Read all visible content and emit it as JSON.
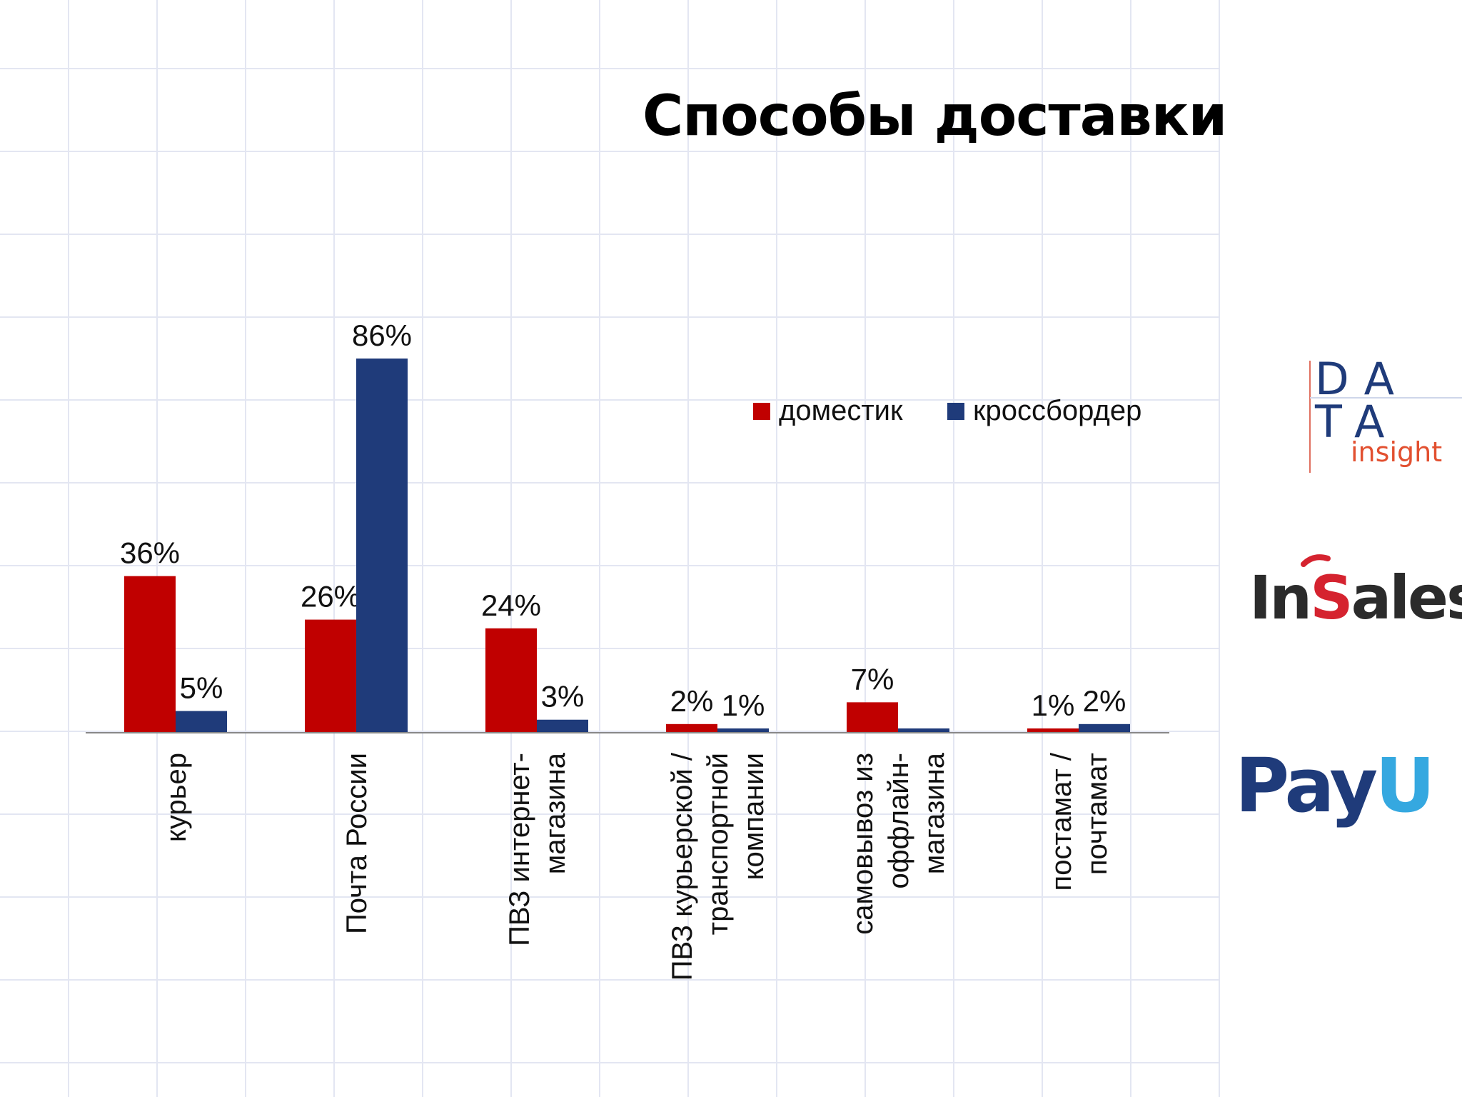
{
  "title": "Способы доставки",
  "colors": {
    "domestic": "#c00000",
    "crossborder": "#1f3b7a",
    "grid": "#e3e6f2"
  },
  "chart_data": {
    "type": "bar",
    "title": "Способы доставки",
    "categories": [
      [
        "курьер"
      ],
      [
        "Почта России"
      ],
      [
        "ПВЗ интернет-",
        "магазина"
      ],
      [
        "ПВЗ курьерской /",
        "транспортной",
        "компании"
      ],
      [
        "самовывоз из",
        "оффлайн-",
        "магазина"
      ],
      [
        "постамат /",
        "почтамат"
      ]
    ],
    "series": [
      {
        "name": "доместик",
        "values": [
          36,
          26,
          24,
          2,
          7,
          1
        ],
        "labels": [
          "36%",
          "26%",
          "24%",
          "2%",
          "7%",
          "1%"
        ],
        "color": "#c00000"
      },
      {
        "name": "кроссбордер",
        "values": [
          5,
          86,
          3,
          1,
          1,
          2
        ],
        "labels": [
          "5%",
          "86%",
          "3%",
          "1%",
          "",
          "2%"
        ],
        "color": "#1f3b7a"
      }
    ],
    "ylim": [
      0,
      90
    ],
    "legend": "top-right",
    "grid": false
  },
  "logos": {
    "data_insight": {
      "line1": "DA",
      "line2": "TA",
      "sub": "insight"
    },
    "insales": {
      "pre": "In",
      "s": "S",
      "post": "ales"
    },
    "payu": {
      "text": "PayU"
    }
  }
}
